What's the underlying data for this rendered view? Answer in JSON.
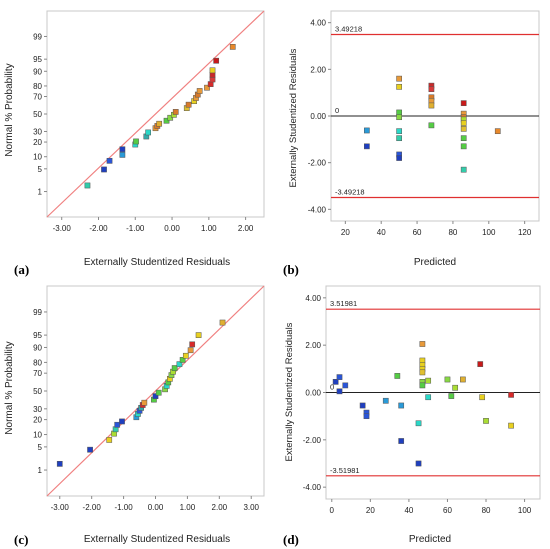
{
  "chart_data": [
    {
      "panel_label": "(a)",
      "type": "scatter",
      "variant": "normal-probability",
      "xlabel": "Externally Studentized Residuals",
      "ylabel": "Normal % Probability",
      "xlim": [
        -3.4,
        2.5
      ],
      "ylim": [
        0.1,
        99.9
      ],
      "y_scale": "normal-probability",
      "xticks": [
        -3,
        -2,
        -1,
        0,
        1,
        2
      ],
      "xtick_labels": [
        "-3.00",
        "-2.00",
        "-1.00",
        "0.00",
        "1.00",
        "2.00"
      ],
      "yticks": [
        1,
        5,
        10,
        20,
        30,
        50,
        70,
        80,
        90,
        95,
        99
      ],
      "reference_line": {
        "x": [
          -3.4,
          2.5
        ],
        "p": [
          0.1,
          99.9
        ],
        "color": "#f08080"
      },
      "points": [
        {
          "x": -2.3,
          "p": 1.6,
          "color": "#33ccaa"
        },
        {
          "x": -1.85,
          "p": 4.8,
          "color": "#1f3fbf"
        },
        {
          "x": -1.7,
          "p": 8.0,
          "color": "#2a55d8"
        },
        {
          "x": -1.35,
          "p": 11.0,
          "color": "#2a9ad8"
        },
        {
          "x": -1.35,
          "p": 14.5,
          "color": "#1f3fbf"
        },
        {
          "x": -1.0,
          "p": 18.0,
          "color": "#2ad8c8"
        },
        {
          "x": -0.98,
          "p": 20.5,
          "color": "#55cc44"
        },
        {
          "x": -0.7,
          "p": 25.0,
          "color": "#33aaaa"
        },
        {
          "x": -0.65,
          "p": 29.0,
          "color": "#2ad8c8"
        },
        {
          "x": -0.45,
          "p": 33.5,
          "color": "#e89a3a"
        },
        {
          "x": -0.4,
          "p": 36.0,
          "color": "#d87a2a"
        },
        {
          "x": -0.35,
          "p": 38.5,
          "color": "#e0b030"
        },
        {
          "x": -0.15,
          "p": 42.0,
          "color": "#55cc44"
        },
        {
          "x": -0.05,
          "p": 45.5,
          "color": "#88d844"
        },
        {
          "x": 0.05,
          "p": 49.0,
          "color": "#aadd33"
        },
        {
          "x": 0.1,
          "p": 52.5,
          "color": "#d87a2a"
        },
        {
          "x": 0.4,
          "p": 57.0,
          "color": "#e0c030"
        },
        {
          "x": 0.45,
          "p": 61.0,
          "color": "#d87a2a"
        },
        {
          "x": 0.6,
          "p": 65.0,
          "color": "#e8d020"
        },
        {
          "x": 0.65,
          "p": 68.5,
          "color": "#e89a3a"
        },
        {
          "x": 0.7,
          "p": 72.0,
          "color": "#d87a2a"
        },
        {
          "x": 0.75,
          "p": 75.5,
          "color": "#e89a3a"
        },
        {
          "x": 0.95,
          "p": 78.5,
          "color": "#e89a3a"
        },
        {
          "x": 1.05,
          "p": 81.5,
          "color": "#d82a2a"
        },
        {
          "x": 1.1,
          "p": 85.0,
          "color": "#d83a3a"
        },
        {
          "x": 1.1,
          "p": 88.0,
          "color": "#c82a2a"
        },
        {
          "x": 1.1,
          "p": 90.5,
          "color": "#e8d020"
        },
        {
          "x": 1.2,
          "p": 94.5,
          "color": "#c81a1a"
        },
        {
          "x": 1.65,
          "p": 97.8,
          "color": "#e8882a"
        }
      ]
    },
    {
      "panel_label": "(b)",
      "type": "scatter",
      "variant": "residuals-vs-predicted",
      "xlabel": "Predicted",
      "ylabel": "Externally Studentized Residuals",
      "xlim": [
        12,
        128
      ],
      "ylim": [
        -4.5,
        4.5
      ],
      "xticks": [
        20,
        40,
        60,
        80,
        100,
        120
      ],
      "yticks": [
        -4,
        -2,
        0,
        2,
        4
      ],
      "ytick_labels": [
        "-4.00",
        "-2.00",
        "0.00",
        "2.00",
        "4.00"
      ],
      "limit_upper": 3.49218,
      "limit_upper_label": "3.49218",
      "limit_lower": -3.49218,
      "limit_lower_label": "-3.49218",
      "zero_label": "0",
      "points": [
        {
          "x": 32,
          "y": -0.62,
          "color": "#2a9ad8"
        },
        {
          "x": 32,
          "y": -1.3,
          "color": "#1f3fbf"
        },
        {
          "x": 50,
          "y": 1.6,
          "color": "#e89a3a"
        },
        {
          "x": 50,
          "y": 1.25,
          "color": "#e8d020"
        },
        {
          "x": 50,
          "y": 0.15,
          "color": "#55cc44"
        },
        {
          "x": 50,
          "y": -0.05,
          "color": "#88d844"
        },
        {
          "x": 50,
          "y": -0.65,
          "color": "#2ad8c8"
        },
        {
          "x": 50,
          "y": -0.95,
          "color": "#33ccaa"
        },
        {
          "x": 50,
          "y": -1.65,
          "color": "#2a55d8"
        },
        {
          "x": 50,
          "y": -1.8,
          "color": "#1f3fbf"
        },
        {
          "x": 68,
          "y": 1.3,
          "color": "#c82a2a"
        },
        {
          "x": 68,
          "y": 1.15,
          "color": "#d83a3a"
        },
        {
          "x": 68,
          "y": 0.8,
          "color": "#d87a2a"
        },
        {
          "x": 68,
          "y": 0.65,
          "color": "#e89a3a"
        },
        {
          "x": 68,
          "y": 0.45,
          "color": "#e0b030"
        },
        {
          "x": 68,
          "y": -0.4,
          "color": "#55cc44"
        },
        {
          "x": 86,
          "y": 0.55,
          "color": "#c81a1a"
        },
        {
          "x": 86,
          "y": 0.1,
          "color": "#e89a3a"
        },
        {
          "x": 86,
          "y": -0.05,
          "color": "#d87a2a"
        },
        {
          "x": 86,
          "y": -0.15,
          "color": "#aadd33"
        },
        {
          "x": 86,
          "y": -0.3,
          "color": "#e8d020"
        },
        {
          "x": 86,
          "y": -0.55,
          "color": "#e0c030"
        },
        {
          "x": 86,
          "y": -0.95,
          "color": "#55cc44"
        },
        {
          "x": 86,
          "y": -1.3,
          "color": "#55cc44"
        },
        {
          "x": 86,
          "y": -2.3,
          "color": "#33ccaa"
        },
        {
          "x": 105,
          "y": -0.65,
          "color": "#e8882a"
        }
      ]
    },
    {
      "panel_label": "(c)",
      "type": "scatter",
      "variant": "normal-probability",
      "xlabel": "Externally Studentized Residuals",
      "ylabel": "Normal % Probability",
      "xlim": [
        -3.4,
        3.4
      ],
      "ylim": [
        0.1,
        99.9
      ],
      "y_scale": "normal-probability",
      "xticks": [
        -3,
        -2,
        -1,
        0,
        1,
        2,
        3
      ],
      "xtick_labels": [
        "-3.00",
        "-2.00",
        "-1.00",
        "0.00",
        "1.00",
        "2.00",
        "3.00"
      ],
      "yticks": [
        1,
        5,
        10,
        20,
        30,
        50,
        70,
        80,
        90,
        95,
        99
      ],
      "reference_line": {
        "x": [
          -3.4,
          3.4
        ],
        "p": [
          0.1,
          99.9
        ],
        "color": "#f08080"
      },
      "points": [
        {
          "x": -3.0,
          "p": 1.6,
          "color": "#1f3fbf"
        },
        {
          "x": -2.05,
          "p": 4.2,
          "color": "#1f3fbf"
        },
        {
          "x": -1.45,
          "p": 7.5,
          "color": "#e8d020"
        },
        {
          "x": -1.3,
          "p": 10.5,
          "color": "#aadd33"
        },
        {
          "x": -1.25,
          "p": 13.0,
          "color": "#33ccaa"
        },
        {
          "x": -1.2,
          "p": 16.0,
          "color": "#2a55d8"
        },
        {
          "x": -1.05,
          "p": 18.5,
          "color": "#1f3fbf"
        },
        {
          "x": -0.6,
          "p": 22.0,
          "color": "#2a9ad8"
        },
        {
          "x": -0.55,
          "p": 25.0,
          "color": "#2ad8c8"
        },
        {
          "x": -0.5,
          "p": 28.0,
          "color": "#2a55d8"
        },
        {
          "x": -0.45,
          "p": 31.0,
          "color": "#33aaaa"
        },
        {
          "x": -0.4,
          "p": 34.0,
          "color": "#d82a2a"
        },
        {
          "x": -0.35,
          "p": 36.5,
          "color": "#e89a3a"
        },
        {
          "x": -0.05,
          "p": 40.0,
          "color": "#55cc44"
        },
        {
          "x": 0.0,
          "p": 44.0,
          "color": "#1f3fbf"
        },
        {
          "x": 0.1,
          "p": 48.0,
          "color": "#55cc44"
        },
        {
          "x": 0.3,
          "p": 52.0,
          "color": "#88d844"
        },
        {
          "x": 0.35,
          "p": 56.0,
          "color": "#2ad8c8"
        },
        {
          "x": 0.4,
          "p": 60.0,
          "color": "#55cc44"
        },
        {
          "x": 0.45,
          "p": 64.0,
          "color": "#e8d020"
        },
        {
          "x": 0.5,
          "p": 68.0,
          "color": "#88d844"
        },
        {
          "x": 0.55,
          "p": 71.5,
          "color": "#aadd33"
        },
        {
          "x": 0.6,
          "p": 75.0,
          "color": "#55cc44"
        },
        {
          "x": 0.75,
          "p": 78.5,
          "color": "#2ad8c8"
        },
        {
          "x": 0.85,
          "p": 82.0,
          "color": "#55cc44"
        },
        {
          "x": 0.95,
          "p": 85.0,
          "color": "#e8d020"
        },
        {
          "x": 1.1,
          "p": 88.5,
          "color": "#e89a3a"
        },
        {
          "x": 1.15,
          "p": 91.5,
          "color": "#d82a2a"
        },
        {
          "x": 1.35,
          "p": 95.0,
          "color": "#e8d020"
        },
        {
          "x": 2.1,
          "p": 97.8,
          "color": "#e0b030"
        }
      ]
    },
    {
      "panel_label": "(d)",
      "type": "scatter",
      "variant": "residuals-vs-predicted",
      "xlabel": "Predicted",
      "ylabel": "Externally Studentized Residuals",
      "xlim": [
        -3,
        108
      ],
      "ylim": [
        -4.5,
        4.5
      ],
      "xticks": [
        0,
        20,
        40,
        60,
        80,
        100
      ],
      "yticks": [
        -4,
        -2,
        0,
        2,
        4
      ],
      "ytick_labels": [
        "-4.00",
        "-2.00",
        "0.00",
        "2.00",
        "4.00"
      ],
      "limit_upper": 3.51981,
      "limit_upper_label": "3.51981",
      "limit_lower": -3.51981,
      "limit_lower_label": "-3.51981",
      "zero_label": "0",
      "points": [
        {
          "x": 2,
          "y": 0.45,
          "color": "#1f3fbf"
        },
        {
          "x": 4,
          "y": 0.65,
          "color": "#2a55d8"
        },
        {
          "x": 4,
          "y": 0.05,
          "color": "#1f3fbf"
        },
        {
          "x": 7,
          "y": 0.3,
          "color": "#2a55d8"
        },
        {
          "x": 16,
          "y": -0.55,
          "color": "#1f3fbf"
        },
        {
          "x": 18,
          "y": -0.85,
          "color": "#2a55d8"
        },
        {
          "x": 18,
          "y": -1.0,
          "color": "#2a55d8"
        },
        {
          "x": 28,
          "y": -0.35,
          "color": "#2a9ad8"
        },
        {
          "x": 34,
          "y": 0.7,
          "color": "#55cc44"
        },
        {
          "x": 36,
          "y": -0.55,
          "color": "#2a9ad8"
        },
        {
          "x": 36,
          "y": -2.05,
          "color": "#1f3fbf"
        },
        {
          "x": 45,
          "y": -1.3,
          "color": "#2ad8c8"
        },
        {
          "x": 45,
          "y": -3.0,
          "color": "#1f3fbf"
        },
        {
          "x": 47,
          "y": 2.05,
          "color": "#e89a3a"
        },
        {
          "x": 47,
          "y": 1.35,
          "color": "#e8d020"
        },
        {
          "x": 47,
          "y": 1.15,
          "color": "#e8d020"
        },
        {
          "x": 47,
          "y": 1.0,
          "color": "#e8d020"
        },
        {
          "x": 47,
          "y": 0.85,
          "color": "#e0c030"
        },
        {
          "x": 47,
          "y": 0.45,
          "color": "#88d844"
        },
        {
          "x": 47,
          "y": 0.3,
          "color": "#55cc44"
        },
        {
          "x": 50,
          "y": 0.5,
          "color": "#aadd33"
        },
        {
          "x": 50,
          "y": -0.2,
          "color": "#2ad8c8"
        },
        {
          "x": 60,
          "y": 0.55,
          "color": "#88d844"
        },
        {
          "x": 62,
          "y": -0.15,
          "color": "#55cc44"
        },
        {
          "x": 64,
          "y": 0.2,
          "color": "#aadd33"
        },
        {
          "x": 68,
          "y": 0.55,
          "color": "#e0b030"
        },
        {
          "x": 77,
          "y": 1.2,
          "color": "#c81a1a"
        },
        {
          "x": 78,
          "y": -0.2,
          "color": "#e8d020"
        },
        {
          "x": 80,
          "y": -1.2,
          "color": "#aadd33"
        },
        {
          "x": 93,
          "y": -0.1,
          "color": "#d82a2a"
        },
        {
          "x": 93,
          "y": -1.4,
          "color": "#e8d020"
        }
      ]
    }
  ]
}
